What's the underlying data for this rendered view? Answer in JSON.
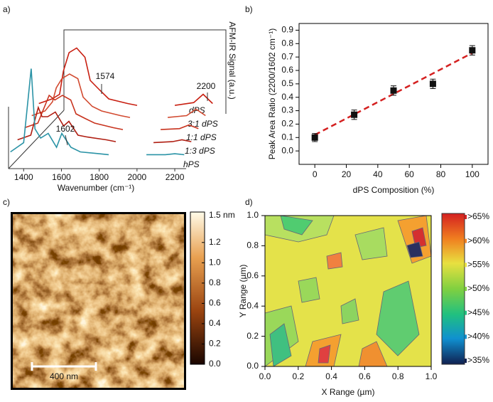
{
  "chart_data": [
    {
      "type": "line",
      "panel_label": "a)",
      "x_label": "Wavenumber (cm⁻¹)",
      "y_label": "AFM-IR Signal (a.u.)",
      "x": [
        1330,
        1400,
        1440,
        1460,
        1490,
        1530,
        1574,
        1602,
        1650,
        1700,
        1800,
        1850,
        1950,
        2050,
        2150,
        2200,
        2250
      ],
      "xlim": [
        1320,
        2260
      ],
      "xticks": [
        1400,
        1600,
        1800,
        2000,
        2200
      ],
      "ylim": [
        0,
        1
      ],
      "series": [
        {
          "name": "dPS",
          "color": "#c81e10",
          "values": [
            0.05,
            0.1,
            0.15,
            0.4,
            0.6,
            0.65,
            0.55,
            0.3,
            0.2,
            0.1,
            0.05,
            0.03,
            null,
            0.03,
            0.06,
            0.15,
            0.05
          ]
        },
        {
          "name": "3:1 dPS",
          "color": "#d24a30",
          "values": [
            0.05,
            0.1,
            0.2,
            0.35,
            0.45,
            0.5,
            0.45,
            0.25,
            0.15,
            0.1,
            0.05,
            0.03,
            null,
            0.03,
            0.05,
            0.12,
            0.05
          ]
        },
        {
          "name": "1:1 dPS",
          "color": "#c8331e",
          "values": [
            0.05,
            0.1,
            0.3,
            0.4,
            0.35,
            0.4,
            0.35,
            0.2,
            0.15,
            0.1,
            0.05,
            0.03,
            null,
            0.03,
            0.04,
            0.08,
            0.04
          ]
        },
        {
          "name": "1:3 dPS",
          "color": "#b01e12",
          "values": [
            0.05,
            0.1,
            0.4,
            0.3,
            0.3,
            0.35,
            0.2,
            0.25,
            0.1,
            0.08,
            0.05,
            0.03,
            null,
            0.02,
            0.03,
            0.05,
            0.03
          ]
        },
        {
          "name": "hPS",
          "color": "#2a93a6",
          "values": [
            0.05,
            0.15,
            0.95,
            0.3,
            0.2,
            0.25,
            0.1,
            0.25,
            0.1,
            0.05,
            0.03,
            0.02,
            null,
            0.02,
            0.02,
            0.03,
            0.02
          ]
        }
      ],
      "annotations": [
        "1574",
        "1602",
        "2200"
      ]
    },
    {
      "type": "scatter",
      "panel_label": "b)",
      "x_label": "dPS Composition (%)",
      "y_label": "Peak Area Ratio (2200/1602 cm⁻¹)",
      "x": [
        0,
        25,
        50,
        75,
        100
      ],
      "values": [
        0.1,
        0.27,
        0.45,
        0.5,
        0.75
      ],
      "errors": [
        0.03,
        0.035,
        0.035,
        0.035,
        0.035
      ],
      "color": "#111111",
      "fit": {
        "x": [
          0,
          100
        ],
        "values": [
          0.12,
          0.73
        ],
        "color": "#d42020"
      },
      "xlim": [
        -10,
        110
      ],
      "xticks": [
        0,
        20,
        40,
        60,
        80,
        100
      ],
      "ylim": [
        -0.1,
        0.95
      ],
      "yticks": [
        {
          "value": 0,
          "label": "0.0"
        },
        0.1,
        0.2,
        0.3,
        0.4,
        0.5,
        0.6,
        0.7,
        0.8,
        0.9
      ]
    },
    {
      "type": "image",
      "panel_label": "c)",
      "scale_bar": "400 nm",
      "colorbar": {
        "lim": [
          0,
          1.5
        ],
        "ticks": [
          {
            "value": 1.5,
            "label": "1.5 nm"
          },
          1.2,
          {
            "value": 1.0,
            "label": "1.0"
          },
          0.8,
          0.6,
          0.4,
          0.2,
          {
            "value": 0,
            "label": "0.0"
          }
        ]
      }
    },
    {
      "type": "contour",
      "panel_label": "d)",
      "x_label": "X Range (µm)",
      "y_label": "Y Range (µm)",
      "xlim": [
        0,
        1
      ],
      "xticks": [
        {
          "value": 0,
          "label": "0.0"
        },
        0.2,
        0.4,
        0.6,
        0.8,
        {
          "value": 1,
          "label": "1.0"
        }
      ],
      "ylim": [
        0,
        1
      ],
      "yticks": [
        {
          "value": 0,
          "label": "0.0"
        },
        0.2,
        0.4,
        0.6,
        0.8,
        {
          "value": 1,
          "label": "1.0"
        }
      ],
      "levels": [
        {
          "label": ">65%",
          "color": "#d42020"
        },
        {
          "label": ">60%",
          "color": "#f08020"
        },
        {
          "label": ">55%",
          "color": "#e8e040"
        },
        {
          "label": ">50%",
          "color": "#80d040"
        },
        {
          "label": ">45%",
          "color": "#20c080"
        },
        {
          "label": ">40%",
          "color": "#1090d0"
        },
        {
          "label": ">35%",
          "color": "#102050"
        }
      ]
    }
  ]
}
